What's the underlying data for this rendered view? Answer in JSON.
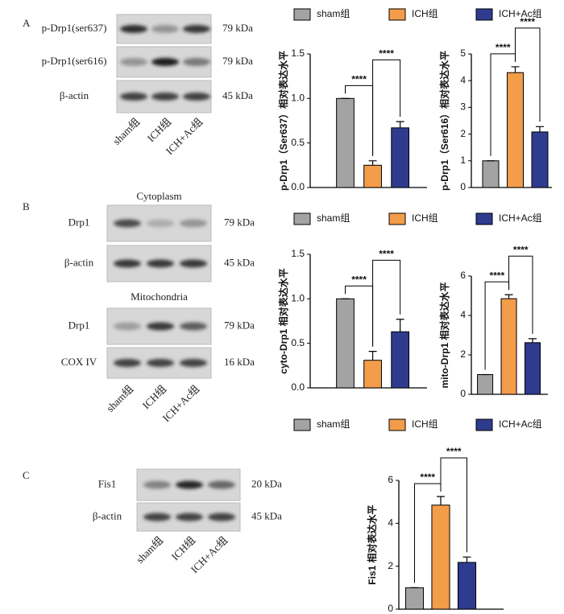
{
  "blots": [
    {
      "panel": "A",
      "lanes": [
        "sham组",
        "ICH组",
        "ICH+Ac组"
      ],
      "groups": [
        {
          "rows": [
            {
              "label": "p-Drp1(ser637)",
              "size": "79 kDa"
            },
            {
              "label": "p-Drp1(ser616)",
              "size": "79 kDa"
            },
            {
              "label": "β-actin",
              "size": "45 kDa"
            }
          ]
        }
      ]
    },
    {
      "panel": "B",
      "lanes": [
        "sham组",
        "ICH组",
        "ICH+Ac组"
      ],
      "groups": [
        {
          "title": "Cytoplasm",
          "rows": [
            {
              "label": "Drp1",
              "size": "79 kDa"
            },
            {
              "label": "β-actin",
              "size": "45 kDa"
            }
          ]
        },
        {
          "title": "Mitochondria",
          "rows": [
            {
              "label": "Drp1",
              "size": "79 kDa"
            },
            {
              "label": "COX IV",
              "size": "16 kDa"
            }
          ]
        }
      ]
    },
    {
      "panel": "C",
      "lanes": [
        "sham组",
        "ICH组",
        "ICH+Ac组"
      ],
      "groups": [
        {
          "rows": [
            {
              "label": "Fis1",
              "size": "20 kDa"
            },
            {
              "label": "β-actin",
              "size": "45 kDa"
            }
          ]
        }
      ]
    }
  ],
  "chart_data": [
    {
      "type": "bar",
      "y_label": "p-Drp1（Ser637）相对表达水平",
      "legend": true,
      "series": [
        {
          "name": "sham组",
          "color": "#a3a3a3",
          "values": [
            1.0
          ],
          "errors": [
            0
          ]
        },
        {
          "name": "ICH组",
          "color": "#f39c4a",
          "values": [
            0.25
          ],
          "errors": [
            0.05
          ]
        },
        {
          "name": "ICH+Ac组",
          "color": "#2f3b8f",
          "values": [
            0.67
          ],
          "errors": [
            0.07
          ]
        }
      ],
      "ylim": [
        0,
        1.5
      ],
      "yticks": [
        {
          "value": 0,
          "label": "0.0"
        },
        {
          "value": 0.5,
          "label": "0.5"
        },
        {
          "value": 1,
          "label": "1.0"
        },
        {
          "value": 1.5,
          "label": "1.5"
        }
      ],
      "annotations": [
        "****",
        "****"
      ]
    },
    {
      "type": "bar",
      "y_label": "p-Drp1（Ser616）相对表达水平",
      "legend": false,
      "series": [
        {
          "name": "sham组",
          "color": "#a3a3a3",
          "values": [
            1.0
          ],
          "errors": [
            0
          ]
        },
        {
          "name": "ICH组",
          "color": "#f39c4a",
          "values": [
            4.3
          ],
          "errors": [
            0.22
          ]
        },
        {
          "name": "ICH+Ac组",
          "color": "#2f3b8f",
          "values": [
            2.08
          ],
          "errors": [
            0.2
          ]
        }
      ],
      "ylim": [
        0,
        5
      ],
      "yticks": [
        0,
        1,
        2,
        3,
        4,
        5
      ],
      "annotations": [
        "****",
        "****"
      ]
    },
    {
      "type": "bar",
      "y_label": "cyto-Drp1 相对表达水平",
      "legend": true,
      "series": [
        {
          "name": "sham组",
          "color": "#a3a3a3",
          "values": [
            1.0
          ],
          "errors": [
            0
          ]
        },
        {
          "name": "ICH组",
          "color": "#f39c4a",
          "values": [
            0.31
          ],
          "errors": [
            0.1
          ]
        },
        {
          "name": "ICH+Ac组",
          "color": "#2f3b8f",
          "values": [
            0.63
          ],
          "errors": [
            0.14
          ]
        }
      ],
      "ylim": [
        0,
        1.5
      ],
      "yticks": [
        {
          "value": 0,
          "label": "0.0"
        },
        {
          "value": 0.5,
          "label": "0.5"
        },
        {
          "value": 1,
          "label": "1.0"
        },
        {
          "value": 1.5,
          "label": "1.5"
        }
      ],
      "annotations": [
        "****",
        "****"
      ]
    },
    {
      "type": "bar",
      "y_label": "mito-Drp1 相对表达水平",
      "legend": false,
      "series": [
        {
          "name": "sham组",
          "color": "#a3a3a3",
          "values": [
            1.0
          ],
          "errors": [
            0
          ]
        },
        {
          "name": "ICH组",
          "color": "#f39c4a",
          "values": [
            4.85
          ],
          "errors": [
            0.2
          ]
        },
        {
          "name": "ICH+Ac组",
          "color": "#2f3b8f",
          "values": [
            2.62
          ],
          "errors": [
            0.2
          ]
        }
      ],
      "ylim": [
        0,
        6
      ],
      "yticks": [
        0,
        2,
        4,
        6
      ],
      "annotations": [
        "****",
        "****"
      ]
    },
    {
      "type": "bar",
      "y_label": "Fis1 相对表达水平",
      "legend": true,
      "series": [
        {
          "name": "sham组",
          "color": "#a3a3a3",
          "values": [
            1.0
          ],
          "errors": [
            0
          ]
        },
        {
          "name": "ICH组",
          "color": "#f39c4a",
          "values": [
            4.85
          ],
          "errors": [
            0.4
          ]
        },
        {
          "name": "ICH+Ac组",
          "color": "#2f3b8f",
          "values": [
            2.18
          ],
          "errors": [
            0.25
          ]
        }
      ],
      "ylim": [
        0,
        6
      ],
      "yticks": [
        0,
        2,
        4,
        6
      ],
      "annotations": [
        "****",
        "****"
      ]
    }
  ]
}
